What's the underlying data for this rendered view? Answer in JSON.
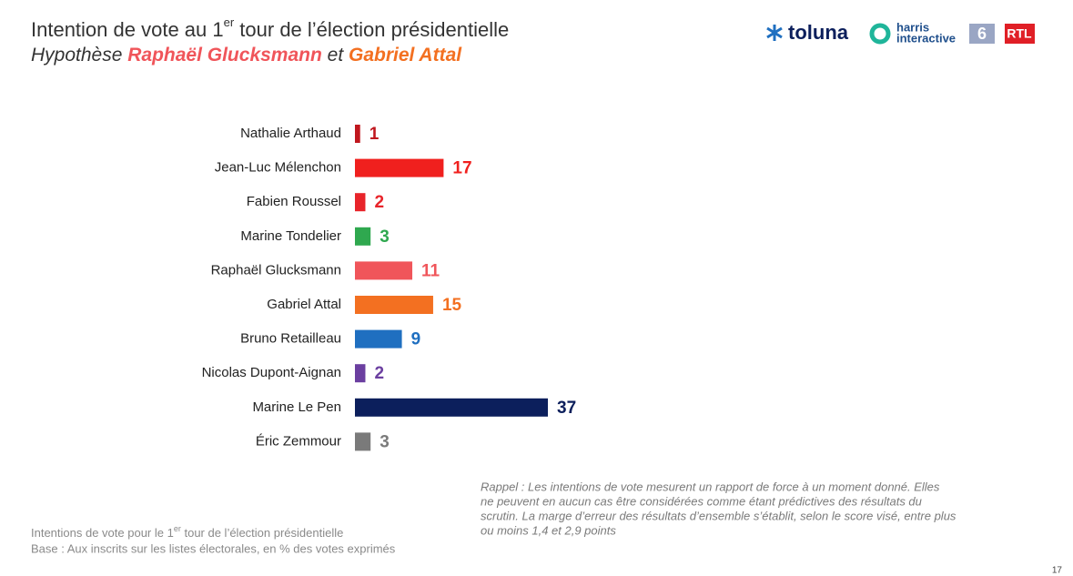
{
  "header": {
    "title": [
      "Intention de vote au 1",
      "er",
      " tour de l’élection présidentielle"
    ],
    "subtitle": [
      "Hypothèse ",
      "Raphaël Glucksmann",
      " et ",
      "Gabriel Attal"
    ]
  },
  "logos": {
    "toluna": "toluna",
    "harris": [
      "harris",
      "interactive"
    ],
    "m6": "6",
    "rtl": "RTL"
  },
  "chart_data": {
    "type": "bar",
    "categories": [
      "Nathalie Arthaud",
      "Jean-Luc Mélenchon",
      "Fabien Roussel",
      "Marine Tondelier",
      "Raphaël Glucksmann",
      "Gabriel Attal",
      "Bruno Retailleau",
      "Nicolas Dupont-Aignan",
      "Marine Le Pen",
      "Éric Zemmour"
    ],
    "values": [
      1,
      17,
      2,
      3,
      11,
      15,
      9,
      2,
      37,
      3
    ],
    "colors": [
      "#c0171e",
      "#f0201e",
      "#e8242a",
      "#2fa84f",
      "#f0555a",
      "#f37021",
      "#1f6fc0",
      "#6b3fa0",
      "#0c1f5c",
      "#7a7a7a"
    ]
  },
  "footer": {
    "line1": [
      "Intentions de vote pour le 1",
      "er",
      " tour de l’élection présidentielle"
    ],
    "line2": "Base : Aux inscrits sur les listes électorales, en % des votes exprimés"
  },
  "note": [
    "Rappel : Les intentions de vote mesurent un rapport de force à un moment donné. Elles",
    "ne peuvent en aucun cas être considérées comme étant prédictives des résultats du",
    "scrutin. La marge d’erreur des résultats d’ensemble s’établit, selon le score visé, entre plus",
    "ou moins 1,4 et 2,9 points"
  ],
  "page_number": "17"
}
